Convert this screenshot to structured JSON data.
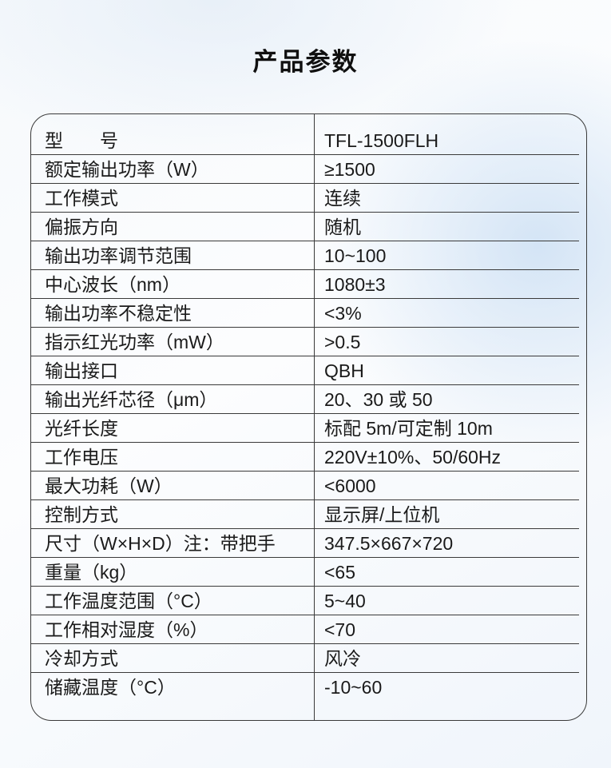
{
  "page": {
    "title": "产品参数"
  },
  "colors": {
    "border": "#3a3a3a",
    "text": "#1a1a1a",
    "background_tint": "#e8f0f9"
  },
  "table": {
    "rows": [
      {
        "label": "型　　号",
        "value": "TFL-1500FLH"
      },
      {
        "label": "额定输出功率（W）",
        "value": "≥1500"
      },
      {
        "label": "工作模式",
        "value": "连续"
      },
      {
        "label": "偏振方向",
        "value": "随机"
      },
      {
        "label": "输出功率调节范围",
        "value": "10~100"
      },
      {
        "label": "中心波长（nm）",
        "value": "1080±3"
      },
      {
        "label": "输出功率不稳定性",
        "value": "<3%"
      },
      {
        "label": "指示红光功率（mW）",
        "value": ">0.5"
      },
      {
        "label": "输出接口",
        "value": "QBH"
      },
      {
        "label": "输出光纤芯径（μm）",
        "value": "20、30 或 50"
      },
      {
        "label": "光纤长度",
        "value": "标配 5m/可定制 10m"
      },
      {
        "label": "工作电压",
        "value": "220V±10%、50/60Hz"
      },
      {
        "label": "最大功耗（W）",
        "value": "<6000"
      },
      {
        "label": "控制方式",
        "value": "显示屏/上位机"
      },
      {
        "label": "尺寸（W×H×D）注：带把手",
        "value": "347.5×667×720"
      },
      {
        "label": "重量（kg）",
        "value": "<65"
      },
      {
        "label": "工作温度范围（°C）",
        "value": "5~40"
      },
      {
        "label": "工作相对湿度（%）",
        "value": "<70"
      },
      {
        "label": "冷却方式",
        "value": "风冷"
      },
      {
        "label": "储藏温度（°C）",
        "value": "-10~60"
      }
    ]
  }
}
